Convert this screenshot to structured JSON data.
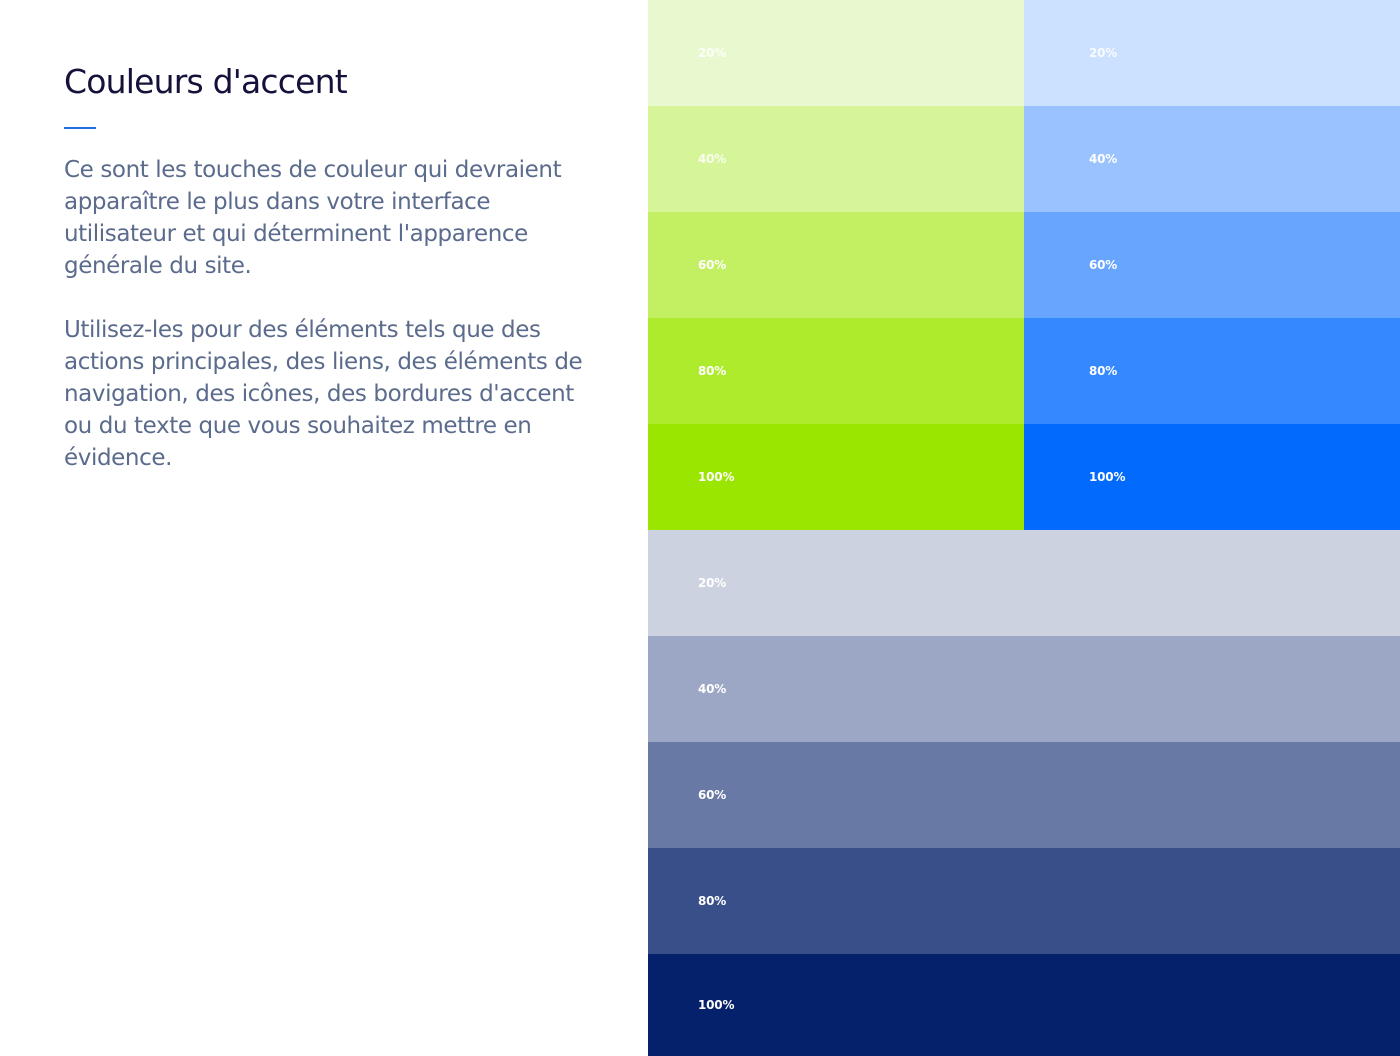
{
  "text_panel": {
    "title": "Couleurs d'accent",
    "paragraph_1": "Ce sont les touches de couleur qui devraient apparaître le plus dans votre interface utilisateur et qui déterminent l'apparence générale du site.",
    "paragraph_2": "Utilisez-les pour des éléments tels que des actions principales, des liens, des éléments de navigation, des icônes, des bordures d'accent ou du texte que vous souhaitez mettre en évidence.",
    "accent_line_color": "#1f6fe0"
  },
  "palettes": {
    "green": [
      {
        "label": "20%",
        "color": "#e8f9cf"
      },
      {
        "label": "40%",
        "color": "#d6f598"
      },
      {
        "label": "60%",
        "color": "#c3f063"
      },
      {
        "label": "80%",
        "color": "#afeb2d"
      },
      {
        "label": "100%",
        "color": "#9be600"
      }
    ],
    "blue": [
      {
        "label": "20%",
        "color": "#cce0ff"
      },
      {
        "label": "40%",
        "color": "#99c2ff"
      },
      {
        "label": "60%",
        "color": "#67a5ff"
      },
      {
        "label": "80%",
        "color": "#3588ff"
      },
      {
        "label": "100%",
        "color": "#026bfe"
      }
    ],
    "navy": [
      {
        "label": "20%",
        "color": "#ccd2df"
      },
      {
        "label": "40%",
        "color": "#9ba7c4"
      },
      {
        "label": "60%",
        "color": "#6979a6"
      },
      {
        "label": "80%",
        "color": "#384f8a"
      },
      {
        "label": "100%",
        "color": "#05216b"
      }
    ]
  }
}
